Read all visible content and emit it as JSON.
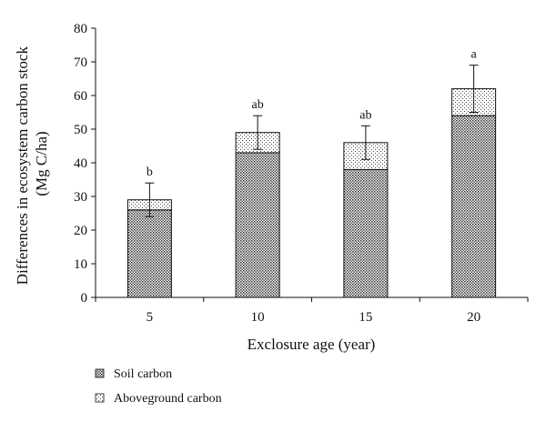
{
  "chart_data": {
    "type": "bar",
    "stacked": true,
    "categories": [
      "5",
      "10",
      "15",
      "20"
    ],
    "series": [
      {
        "name": "Soil carbon",
        "values": [
          26,
          43,
          38,
          54
        ],
        "pattern": "dense-dots"
      },
      {
        "name": "Aboveground carbon",
        "values": [
          3,
          6,
          8,
          8
        ],
        "pattern": "sparse-dots"
      }
    ],
    "totals": [
      29,
      49,
      46,
      62
    ],
    "error_bars": [
      {
        "lower": 24,
        "upper": 34
      },
      {
        "lower": 44,
        "upper": 54
      },
      {
        "lower": 41,
        "upper": 51
      },
      {
        "lower": 55,
        "upper": 69
      }
    ],
    "significance_labels": [
      "b",
      "ab",
      "ab",
      "a"
    ],
    "xlabel": "Exclosure age (year)",
    "ylabel_lines": [
      "Differences in ecosystem carbon stock",
      "(Mg C/ha)"
    ],
    "ylim": [
      0,
      80
    ],
    "yticks": [
      0,
      10,
      20,
      30,
      40,
      50,
      60,
      70,
      80
    ],
    "grid": false,
    "legend_position": "bottom-left"
  }
}
